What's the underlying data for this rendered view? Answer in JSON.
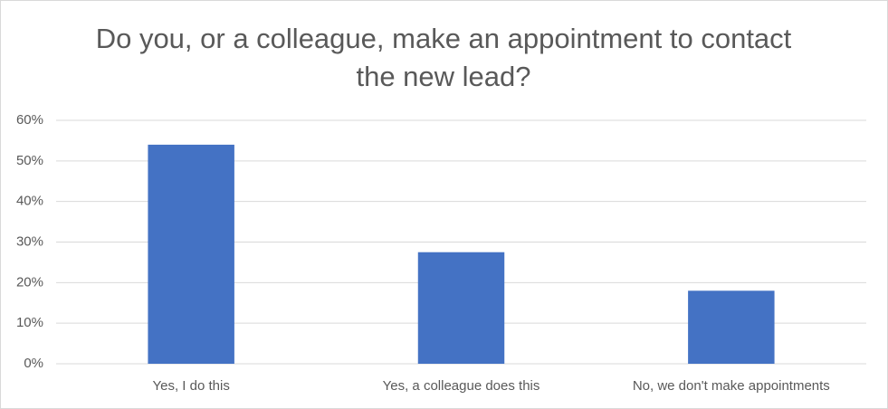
{
  "chart_data": {
    "type": "bar",
    "title": "Do you, or a colleague, make an appointment to contact the new lead?",
    "categories": [
      "Yes, I do this",
      "Yes, a colleague does this",
      "No, we don't make appointments"
    ],
    "values": [
      54,
      27.5,
      18
    ],
    "color": "#4472c4",
    "ylim": [
      0,
      60
    ],
    "yticks": [
      {
        "value": 0,
        "label": "0%"
      },
      {
        "value": 10,
        "label": "10%"
      },
      {
        "value": 20,
        "label": "20%"
      },
      {
        "value": 30,
        "label": "30%"
      },
      {
        "value": 40,
        "label": "40%"
      },
      {
        "value": 50,
        "label": "50%"
      },
      {
        "value": 60,
        "label": "60%"
      }
    ],
    "grid": true
  }
}
